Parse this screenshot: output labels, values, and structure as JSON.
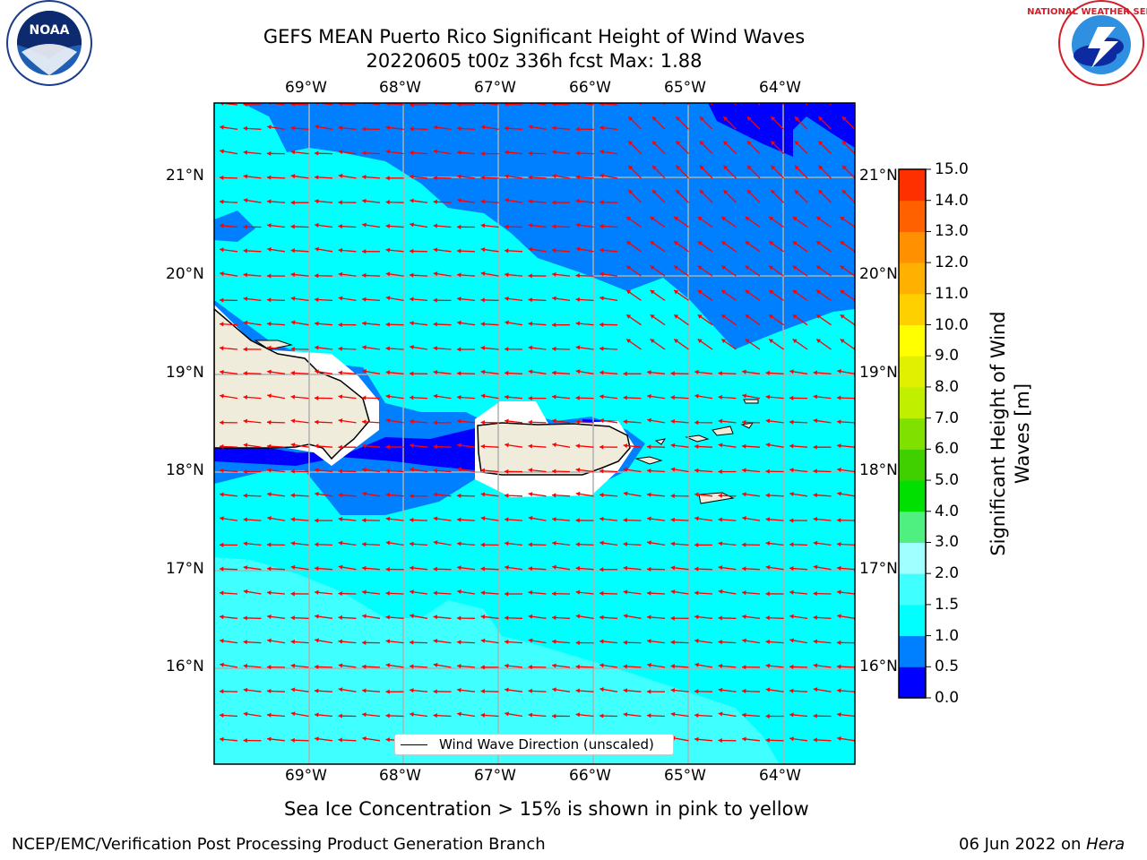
{
  "header": {
    "title_line1": "GEFS MEAN Puerto Rico Significant Height of Wind Waves",
    "title_line2": "20220605 t00z 336h fcst   Max: 1.88"
  },
  "logos": {
    "left": {
      "name": "noaa-logo",
      "text": "NOAA"
    },
    "right": {
      "name": "nws-logo",
      "text": "NATIONAL WEATHER SERVICE"
    }
  },
  "map": {
    "lon_labels": [
      "69°W",
      "68°W",
      "67°W",
      "66°W",
      "65°W",
      "64°W"
    ],
    "lat_labels": [
      "21°N",
      "20°N",
      "19°N",
      "18°N",
      "17°N",
      "16°N"
    ],
    "legend_text": "Wind Wave Direction (unscaled)",
    "arrow_color": "#ff0000",
    "coast_color": "#000000",
    "land_color": "#efecdc"
  },
  "colorbar": {
    "label": "Significant Height of Wind Waves [m]",
    "ticks": [
      "0.0",
      "0.5",
      "1.0",
      "1.5",
      "2.0",
      "3.0",
      "4.0",
      "5.0",
      "6.0",
      "7.0",
      "8.0",
      "9.0",
      "10.0",
      "11.0",
      "12.0",
      "13.0",
      "14.0",
      "15.0"
    ],
    "colors": [
      "#0000ff",
      "#0080ff",
      "#00ffff",
      "#40ffff",
      "#a0ffff",
      "#50f080",
      "#00e000",
      "#40d000",
      "#80e000",
      "#c0f000",
      "#e0f000",
      "#ffff00",
      "#ffd000",
      "#ffb000",
      "#ff9000",
      "#ff6000",
      "#ff3000"
    ]
  },
  "footer": {
    "note": "Sea Ice Concentration > 15% is shown in pink to yellow",
    "left": "NCEP/EMC/Verification Post Processing Product Generation Branch",
    "right_date": "06 Jun 2022 on ",
    "right_host": "Hera"
  }
}
